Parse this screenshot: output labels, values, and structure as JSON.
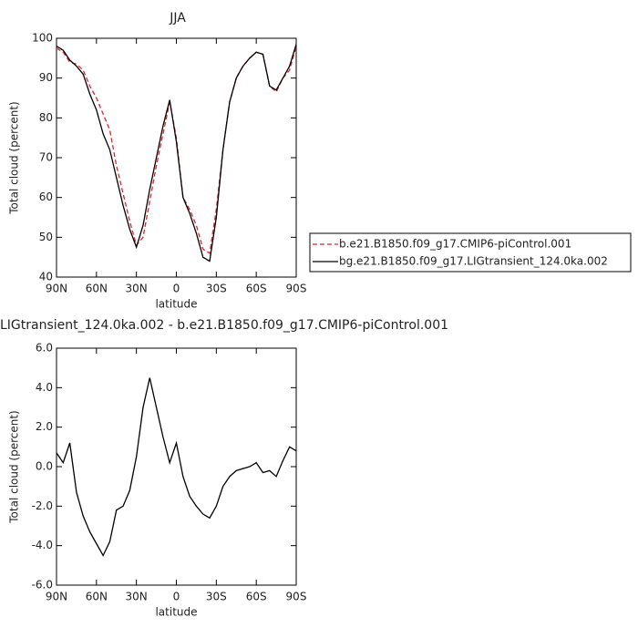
{
  "chart_data": [
    {
      "type": "line",
      "title": "JJA",
      "xlabel": "latitude",
      "ylabel": "Total cloud (percent)",
      "x": [
        90,
        85,
        80,
        75,
        70,
        65,
        60,
        55,
        50,
        45,
        40,
        35,
        30,
        25,
        20,
        15,
        10,
        5,
        0,
        -5,
        -10,
        -15,
        -20,
        -25,
        -30,
        -35,
        -40,
        -45,
        -50,
        -55,
        -60,
        -65,
        -70,
        -75,
        -80,
        -85,
        -90
      ],
      "xlim": [
        90,
        -90
      ],
      "xticks": [
        {
          "value": 90,
          "label": "90N"
        },
        {
          "value": 60,
          "label": "60N"
        },
        {
          "value": 30,
          "label": "30N"
        },
        0,
        {
          "value": -30,
          "label": "30S"
        },
        {
          "value": -60,
          "label": "60S"
        },
        {
          "value": -90,
          "label": "90S"
        }
      ],
      "ylim": [
        40,
        100
      ],
      "yticks": [
        40,
        50,
        60,
        70,
        80,
        90,
        100
      ],
      "legend": "right",
      "series": [
        {
          "name": "b.e21.B1850.f09_g17.CMIP6-piControl.001",
          "color": "#e8202a",
          "dashed": true,
          "values": [
            97.5,
            96.5,
            94,
            93.5,
            92,
            88,
            85,
            81,
            77,
            68,
            61,
            54,
            48,
            50,
            59,
            68,
            76,
            84,
            75,
            60,
            57,
            53,
            47,
            46,
            57,
            72,
            84,
            90,
            93,
            95,
            96.5,
            96,
            88,
            86.5,
            90,
            92,
            98
          ]
        },
        {
          "name": "bg.e21.B1850.f09_g17.LIGtransient_124.0ka.002",
          "color": "#000000",
          "dashed": false,
          "values": [
            98,
            97,
            94.5,
            93,
            91,
            86,
            82,
            76,
            72,
            65,
            58,
            52,
            47.5,
            53,
            62,
            70,
            78,
            84.5,
            74,
            60,
            56,
            51,
            45,
            44,
            55,
            72,
            84,
            90,
            93,
            95,
            96.5,
            96,
            88,
            87,
            90,
            93,
            98.5
          ]
        }
      ]
    },
    {
      "type": "line",
      "title": "LIGtransient_124.0ka.002 - b.e21.B1850.f09_g17.CMIP6-piControl.001",
      "xlabel": "latitude",
      "ylabel": "Total cloud (percent)",
      "x": [
        90,
        85,
        80,
        75,
        70,
        65,
        60,
        55,
        50,
        45,
        40,
        35,
        30,
        25,
        20,
        15,
        10,
        5,
        0,
        -5,
        -10,
        -15,
        -20,
        -25,
        -30,
        -35,
        -40,
        -45,
        -50,
        -55,
        -60,
        -65,
        -70,
        -75,
        -80,
        -85,
        -90
      ],
      "xlim": [
        90,
        -90
      ],
      "xticks": [
        {
          "value": 90,
          "label": "90N"
        },
        {
          "value": 60,
          "label": "60N"
        },
        {
          "value": 30,
          "label": "30N"
        },
        0,
        {
          "value": -30,
          "label": "30S"
        },
        {
          "value": -60,
          "label": "60S"
        },
        {
          "value": -90,
          "label": "90S"
        }
      ],
      "ylim": [
        -6,
        6
      ],
      "yticks": [
        {
          "value": -6,
          "label": "-6.0"
        },
        {
          "value": -4,
          "label": "-4.0"
        },
        {
          "value": -2,
          "label": "-2.0"
        },
        {
          "value": 0,
          "label": "0.0"
        },
        {
          "value": 2,
          "label": "2.0"
        },
        {
          "value": 4,
          "label": "4.0"
        },
        {
          "value": 6,
          "label": "6.0"
        }
      ],
      "series": [
        {
          "color": "#000000",
          "dashed": false,
          "values": [
            0.7,
            0.2,
            1.2,
            -1.3,
            -2.5,
            -3.3,
            -3.9,
            -4.5,
            -3.8,
            -2.2,
            -2.0,
            -1.2,
            0.5,
            3.0,
            4.5,
            3.0,
            1.5,
            0.2,
            1.2,
            -0.5,
            -1.5,
            -2.0,
            -2.4,
            -2.6,
            -2.0,
            -1.0,
            -0.5,
            -0.2,
            -0.1,
            0.0,
            0.2,
            -0.3,
            -0.2,
            -0.5,
            0.3,
            1.0,
            0.8
          ]
        }
      ]
    }
  ]
}
